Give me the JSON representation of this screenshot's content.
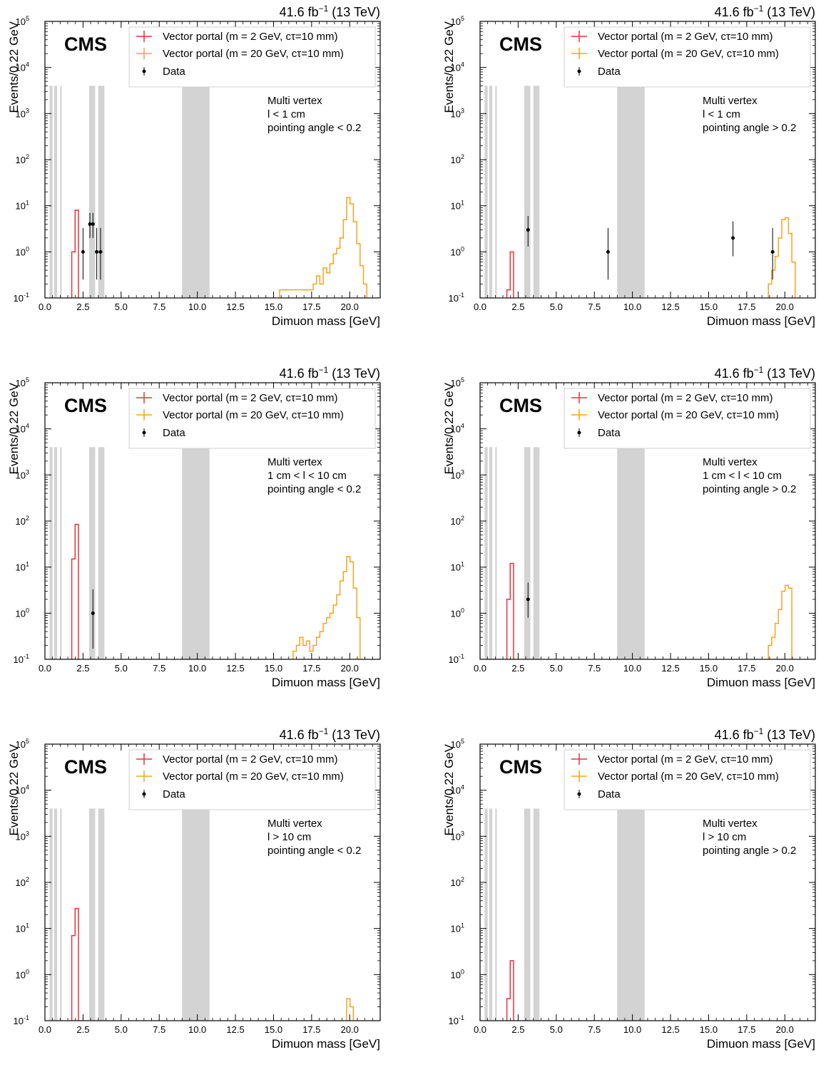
{
  "colors": {
    "signal_2gev": "#e8323c",
    "signal_20gev": "#f5a31e",
    "data": "#000000",
    "veto_band": "#d3d3d3"
  },
  "chart_data": [
    {
      "type": "line",
      "lumi_label": "41.6 fb",
      "lumi_exp": "−1",
      "energy_label": "(13 TeV)",
      "experiment": "CMS",
      "ylabel": "Events/0.22 GeV",
      "xlabel": "Dimuon mass [GeV]",
      "log_y": true,
      "ylim": [
        0.1,
        100000
      ],
      "xlim": [
        0,
        22
      ],
      "x_ticks": [
        "0.0",
        "2.5",
        "5.0",
        "7.5",
        "10.0",
        "12.5",
        "15.0",
        "17.5",
        "20.0"
      ],
      "legend": [
        "Vector portal (m = 2 GeV, cτ=10 mm)",
        "Vector portal (m = 20 GeV, cτ=10 mm)",
        "Data"
      ],
      "legend_placement": "top-right",
      "category_lines": [
        "Multi vertex",
        "l < 1 cm",
        "pointing angle < 0.2"
      ],
      "veto_bands": [
        [
          0.3,
          0.5
        ],
        [
          0.6,
          0.8
        ],
        [
          1.0,
          1.1
        ],
        [
          2.9,
          3.3
        ],
        [
          3.5,
          3.9
        ],
        [
          9.0,
          10.8
        ]
      ],
      "series": [
        {
          "name": "Vector portal (m = 2 GeV, cτ=10 mm)",
          "x": [
            1.76,
            1.98,
            2.2
          ],
          "y": [
            1.0,
            8.0,
            0
          ]
        },
        {
          "name": "Vector portal (m = 20 GeV, cτ=10 mm)",
          "x": [
            15.4,
            17.6,
            17.82,
            18.04,
            18.26,
            18.48,
            18.7,
            18.92,
            19.14,
            19.36,
            19.58,
            19.8,
            20.02,
            20.24,
            20.46,
            20.68,
            20.9,
            21.12
          ],
          "y": [
            0.15,
            0.2,
            0.3,
            0.2,
            0.45,
            0.35,
            0.55,
            0.9,
            1.2,
            2.0,
            5.0,
            15.0,
            11.0,
            4.5,
            1.5,
            0.5,
            0.2,
            0
          ]
        }
      ],
      "data_points": [
        {
          "x": 2.5,
          "y": 1,
          "lo": 0.25,
          "hi": 3.3
        },
        {
          "x": 2.95,
          "y": 4,
          "lo": 2.0,
          "hi": 7.0
        },
        {
          "x": 3.15,
          "y": 4,
          "lo": 2.0,
          "hi": 7.0
        },
        {
          "x": 3.4,
          "y": 1,
          "lo": 0.25,
          "hi": 3.3
        },
        {
          "x": 3.65,
          "y": 1,
          "lo": 0.25,
          "hi": 3.3
        }
      ]
    },
    {
      "type": "line",
      "lumi_label": "41.6 fb",
      "lumi_exp": "−1",
      "energy_label": "(13 TeV)",
      "experiment": "CMS",
      "ylabel": "Events/0.22 GeV",
      "xlabel": "Dimuon mass [GeV]",
      "log_y": true,
      "ylim": [
        0.1,
        100000
      ],
      "xlim": [
        0,
        22
      ],
      "x_ticks": [
        "0.0",
        "2.5",
        "5.0",
        "7.5",
        "10.0",
        "12.5",
        "15.0",
        "17.5",
        "20.0"
      ],
      "legend": [
        "Vector portal (m = 2 GeV, cτ=10 mm)",
        "Vector portal (m = 20 GeV, cτ=10 mm)",
        "Data"
      ],
      "legend_placement": "top-right",
      "category_lines": [
        "Multi vertex",
        "l < 1 cm",
        "pointing angle > 0.2"
      ],
      "veto_bands": [
        [
          0.3,
          0.5
        ],
        [
          0.6,
          0.8
        ],
        [
          1.0,
          1.1
        ],
        [
          2.9,
          3.3
        ],
        [
          3.5,
          3.9
        ],
        [
          9.0,
          10.8
        ]
      ],
      "series": [
        {
          "name": "Vector portal (m = 2 GeV, cτ=10 mm)",
          "x": [
            1.76,
            1.98,
            2.2
          ],
          "y": [
            0.15,
            1.0,
            0
          ]
        },
        {
          "name": "Vector portal (m = 20 GeV, cτ=10 mm)",
          "x": [
            18.92,
            19.14,
            19.36,
            19.58,
            19.8,
            20.02,
            20.24,
            20.46,
            20.68
          ],
          "y": [
            0.2,
            0.4,
            0.8,
            2.0,
            5.0,
            5.5,
            2.5,
            0.6,
            0
          ]
        }
      ],
      "data_points": [
        {
          "x": 3.15,
          "y": 3,
          "lo": 1.3,
          "hi": 6.0
        },
        {
          "x": 8.4,
          "y": 1,
          "lo": 0.25,
          "hi": 3.3
        },
        {
          "x": 16.6,
          "y": 2,
          "lo": 0.8,
          "hi": 4.6
        },
        {
          "x": 19.2,
          "y": 1,
          "lo": 0.25,
          "hi": 3.3
        }
      ]
    },
    {
      "type": "line",
      "lumi_label": "41.6 fb",
      "lumi_exp": "−1",
      "energy_label": "(13 TeV)",
      "experiment": "CMS",
      "ylabel": "Events/0.22 GeV",
      "xlabel": "Dimuon mass [GeV]",
      "log_y": true,
      "ylim": [
        0.1,
        100000
      ],
      "xlim": [
        0,
        22
      ],
      "x_ticks": [
        "0.0",
        "2.5",
        "5.0",
        "7.5",
        "10.0",
        "12.5",
        "15.0",
        "17.5",
        "20.0"
      ],
      "legend": [
        "Vector portal (m = 2 GeV, cτ=10 mm)",
        "Vector portal (m = 20 GeV, cτ=10 mm)",
        "Data"
      ],
      "legend_placement": "top-right",
      "category_lines": [
        "Multi vertex",
        "1 cm < l < 10 cm",
        "pointing angle < 0.2"
      ],
      "veto_bands": [
        [
          0.3,
          0.5
        ],
        [
          0.6,
          0.8
        ],
        [
          1.0,
          1.1
        ],
        [
          2.9,
          3.3
        ],
        [
          3.5,
          3.9
        ],
        [
          9.0,
          10.8
        ]
      ],
      "series": [
        {
          "name": "Vector portal (m = 2 GeV, cτ=10 mm)",
          "x": [
            1.76,
            1.98,
            2.2
          ],
          "y": [
            15,
            85,
            0
          ]
        },
        {
          "name": "Vector portal (m = 20 GeV, cτ=10 mm)",
          "x": [
            16.28,
            16.5,
            16.72,
            16.94,
            17.16,
            17.38,
            17.6,
            17.82,
            18.04,
            18.26,
            18.48,
            18.7,
            18.92,
            19.14,
            19.36,
            19.58,
            19.8,
            20.02,
            20.24,
            20.46,
            20.68
          ],
          "y": [
            0.15,
            0.2,
            0.3,
            0.2,
            0.25,
            0.15,
            0.2,
            0.3,
            0.4,
            0.6,
            0.8,
            1.0,
            1.5,
            2.5,
            5.0,
            8.0,
            17,
            13,
            3.5,
            0.8,
            0
          ]
        }
      ],
      "data_points": [
        {
          "x": 3.15,
          "y": 1,
          "lo": 0.17,
          "hi": 3.3
        }
      ]
    },
    {
      "type": "line",
      "lumi_label": "41.6 fb",
      "lumi_exp": "−1",
      "energy_label": "(13 TeV)",
      "experiment": "CMS",
      "ylabel": "Events/0.22 GeV",
      "xlabel": "Dimuon mass [GeV]",
      "log_y": true,
      "ylim": [
        0.1,
        100000
      ],
      "xlim": [
        0,
        22
      ],
      "x_ticks": [
        "0.0",
        "2.5",
        "5.0",
        "7.5",
        "10.0",
        "12.5",
        "15.0",
        "17.5",
        "20.0"
      ],
      "legend": [
        "Vector portal (m = 2 GeV, cτ=10 mm)",
        "Vector portal (m = 20 GeV, cτ=10 mm)",
        "Data"
      ],
      "legend_placement": "top-right",
      "category_lines": [
        "Multi vertex",
        "1 cm < l < 10 cm",
        "pointing angle > 0.2"
      ],
      "veto_bands": [
        [
          0.3,
          0.5
        ],
        [
          0.6,
          0.8
        ],
        [
          1.0,
          1.1
        ],
        [
          2.9,
          3.3
        ],
        [
          3.5,
          3.9
        ],
        [
          9.0,
          10.8
        ]
      ],
      "series": [
        {
          "name": "Vector portal (m = 2 GeV, cτ=10 mm)",
          "x": [
            1.76,
            1.98,
            2.2
          ],
          "y": [
            2.0,
            12,
            0
          ]
        },
        {
          "name": "Vector portal (m = 20 GeV, cτ=10 mm)",
          "x": [
            18.92,
            19.14,
            19.36,
            19.58,
            19.8,
            20.02,
            20.24,
            20.46
          ],
          "y": [
            0.2,
            0.3,
            0.6,
            1.2,
            3.0,
            4.0,
            3.5,
            0
          ]
        }
      ],
      "data_points": [
        {
          "x": 3.15,
          "y": 2,
          "lo": 0.8,
          "hi": 4.6
        }
      ]
    },
    {
      "type": "line",
      "lumi_label": "41.6 fb",
      "lumi_exp": "−1",
      "energy_label": "(13 TeV)",
      "experiment": "CMS",
      "ylabel": "Events/0.22 GeV",
      "xlabel": "Dimuon mass [GeV]",
      "log_y": true,
      "ylim": [
        0.1,
        100000
      ],
      "xlim": [
        0,
        22
      ],
      "x_ticks": [
        "0.0",
        "2.5",
        "5.0",
        "7.5",
        "10.0",
        "12.5",
        "15.0",
        "17.5",
        "20.0"
      ],
      "legend": [
        "Vector portal (m = 2 GeV, cτ=10 mm)",
        "Vector portal (m = 20 GeV, cτ=10 mm)",
        "Data"
      ],
      "legend_placement": "top-right",
      "category_lines": [
        "Multi vertex",
        "l >  10 cm",
        "pointing angle < 0.2"
      ],
      "veto_bands": [
        [
          0.3,
          0.5
        ],
        [
          0.6,
          0.8
        ],
        [
          1.0,
          1.1
        ],
        [
          2.9,
          3.3
        ],
        [
          3.5,
          3.9
        ],
        [
          9.0,
          10.8
        ]
      ],
      "series": [
        {
          "name": "Vector portal (m = 2 GeV, cτ=10 mm)",
          "x": [
            1.76,
            1.98,
            2.2
          ],
          "y": [
            7.0,
            27,
            0
          ]
        },
        {
          "name": "Vector portal (m = 20 GeV, cτ=10 mm)",
          "x": [
            19.8,
            20.02,
            20.24
          ],
          "y": [
            0.3,
            0.2,
            0
          ]
        }
      ],
      "data_points": []
    },
    {
      "type": "line",
      "lumi_label": "41.6 fb",
      "lumi_exp": "−1",
      "energy_label": "(13 TeV)",
      "experiment": "CMS",
      "ylabel": "Events/0.22 GeV",
      "xlabel": "Dimuon mass [GeV]",
      "log_y": true,
      "ylim": [
        0.1,
        100000
      ],
      "xlim": [
        0,
        22
      ],
      "x_ticks": [
        "0.0",
        "2.5",
        "5.0",
        "7.5",
        "10.0",
        "12.5",
        "15.0",
        "17.5",
        "20.0"
      ],
      "legend": [
        "Vector portal (m = 2 GeV, cτ=10 mm)",
        "Vector portal (m = 20 GeV, cτ=10 mm)",
        "Data"
      ],
      "legend_placement": "top-right",
      "category_lines": [
        "Multi vertex",
        "l >  10 cm",
        "pointing angle > 0.2"
      ],
      "veto_bands": [
        [
          0.3,
          0.5
        ],
        [
          0.6,
          0.8
        ],
        [
          1.0,
          1.1
        ],
        [
          2.9,
          3.3
        ],
        [
          3.5,
          3.9
        ],
        [
          9.0,
          10.8
        ]
      ],
      "series": [
        {
          "name": "Vector portal (m = 2 GeV, cτ=10 mm)",
          "x": [
            1.76,
            1.98,
            2.2
          ],
          "y": [
            0.3,
            2.0,
            0
          ]
        },
        {
          "name": "Vector portal (m = 20 GeV, cτ=10 mm)",
          "x": [],
          "y": []
        }
      ],
      "data_points": []
    }
  ]
}
